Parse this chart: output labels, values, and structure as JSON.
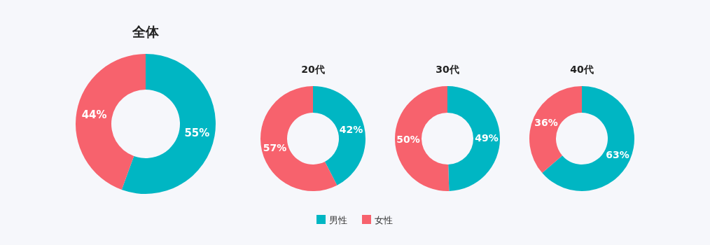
{
  "chart_data": [
    {
      "type": "donut",
      "title": "全体",
      "categories": [
        "男性",
        "女性"
      ],
      "values": [
        55,
        44
      ],
      "colors": [
        "#00b6c3",
        "#f7626d"
      ],
      "value_labels": [
        "55%",
        "44%"
      ],
      "legend": "bottom"
    },
    {
      "type": "donut",
      "title": "20代",
      "categories": [
        null,
        null
      ],
      "values": [
        42,
        57
      ],
      "colors": [
        "#00b6c3",
        "#f7626d"
      ],
      "value_labels": [
        "42%",
        "57%"
      ]
    },
    {
      "type": "donut",
      "title": "30代",
      "categories": [
        null,
        null
      ],
      "values": [
        49,
        50
      ],
      "colors": [
        "#00b6c3",
        "#f7626d"
      ],
      "value_labels": [
        "49%",
        "50%"
      ]
    },
    {
      "type": "donut",
      "title": "40代",
      "categories": [
        null,
        null
      ],
      "values": [
        63,
        36
      ],
      "colors": [
        "#00b6c3",
        "#f7626d"
      ],
      "value_labels": [
        "63%",
        "36%"
      ]
    }
  ]
}
